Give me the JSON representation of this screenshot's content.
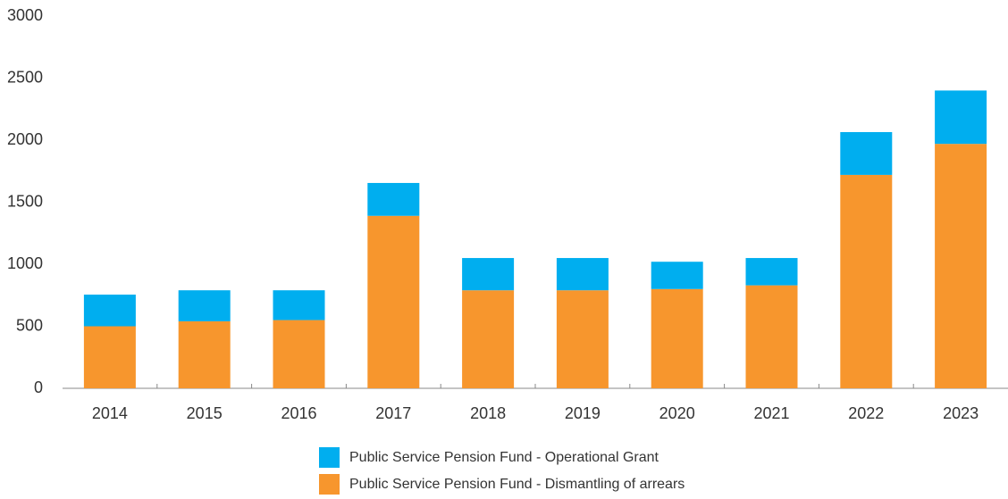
{
  "chart_data": {
    "type": "stacked_bar",
    "categories": [
      "2014",
      "2015",
      "2016",
      "2017",
      "2018",
      "2019",
      "2020",
      "2021",
      "2022",
      "2023"
    ],
    "series": [
      {
        "name": "Public Service Pension Fund - Dismantling of arrears",
        "color": "#f7962d",
        "values": [
          500,
          540,
          550,
          1390,
          790,
          790,
          800,
          830,
          1720,
          1970
        ]
      },
      {
        "name": "Public Service Pension Fund - Operational Grant",
        "color": "#00aeef",
        "values": [
          255,
          250,
          240,
          265,
          260,
          260,
          220,
          220,
          345,
          430
        ]
      }
    ],
    "ylim": [
      0,
      3000
    ],
    "yticks": [
      0,
      500,
      1000,
      1500,
      2000,
      2500,
      3000
    ],
    "grid": false,
    "legend": "bottom"
  }
}
